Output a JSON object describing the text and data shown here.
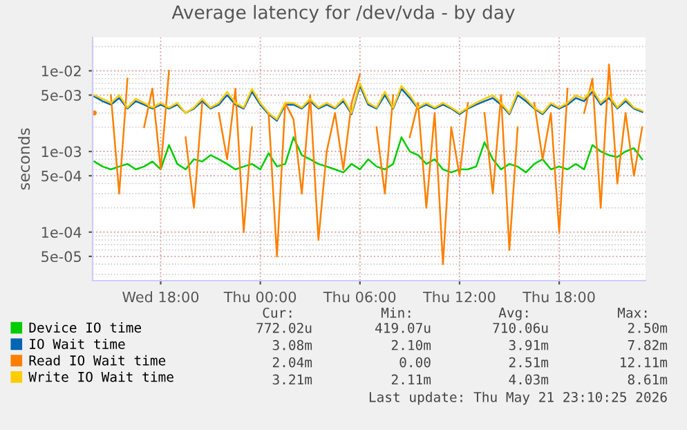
{
  "chart_data": {
    "type": "line",
    "title": "Average latency for /dev/vda - by day",
    "ylabel": "seconds",
    "x": [
      "2026-05-20T14:00",
      "2026-05-20T14:30",
      "2026-05-20T15:00",
      "2026-05-20T15:30",
      "2026-05-20T16:00",
      "2026-05-20T16:30",
      "2026-05-20T17:00",
      "2026-05-20T17:30",
      "2026-05-20T18:00",
      "2026-05-20T18:30",
      "2026-05-20T19:00",
      "2026-05-20T19:30",
      "2026-05-20T20:00",
      "2026-05-20T20:30",
      "2026-05-20T21:00",
      "2026-05-20T21:30",
      "2026-05-20T22:00",
      "2026-05-20T22:30",
      "2026-05-20T23:00",
      "2026-05-20T23:30",
      "2026-05-21T00:00",
      "2026-05-21T00:30",
      "2026-05-21T01:00",
      "2026-05-21T01:30",
      "2026-05-21T02:00",
      "2026-05-21T02:30",
      "2026-05-21T03:00",
      "2026-05-21T03:30",
      "2026-05-21T04:00",
      "2026-05-21T04:30",
      "2026-05-21T05:00",
      "2026-05-21T05:30",
      "2026-05-21T06:00",
      "2026-05-21T06:30",
      "2026-05-21T07:00",
      "2026-05-21T07:30",
      "2026-05-21T08:00",
      "2026-05-21T08:30",
      "2026-05-21T09:00",
      "2026-05-21T09:30",
      "2026-05-21T10:00",
      "2026-05-21T10:30",
      "2026-05-21T11:00",
      "2026-05-21T11:30",
      "2026-05-21T12:00",
      "2026-05-21T12:30",
      "2026-05-21T13:00",
      "2026-05-21T13:30",
      "2026-05-21T14:00",
      "2026-05-21T14:30",
      "2026-05-21T15:00",
      "2026-05-21T15:30",
      "2026-05-21T16:00",
      "2026-05-21T16:30",
      "2026-05-21T17:00",
      "2026-05-21T17:30",
      "2026-05-21T18:00",
      "2026-05-21T18:30",
      "2026-05-21T19:00",
      "2026-05-21T19:30",
      "2026-05-21T20:00",
      "2026-05-21T20:30",
      "2026-05-21T21:00",
      "2026-05-21T21:30",
      "2026-05-21T22:00",
      "2026-05-21T22:30",
      "2026-05-21T23:00"
    ],
    "series": [
      {
        "name": "Device IO time",
        "color": "#00cc00",
        "values": [
          0.00075,
          0.00065,
          0.0006,
          0.00065,
          0.0007,
          0.0006,
          0.00065,
          0.00075,
          0.0006,
          0.0012,
          0.0007,
          0.0006,
          0.0008,
          0.00075,
          0.0009,
          0.0008,
          0.0007,
          0.0006,
          0.00065,
          0.0007,
          0.0006,
          0.00095,
          0.00065,
          0.0007,
          0.0015,
          0.0009,
          0.0008,
          0.0007,
          0.00065,
          0.0006,
          0.00055,
          0.0007,
          0.0006,
          0.0008,
          0.00065,
          0.0006,
          0.0007,
          0.0015,
          0.001,
          0.0009,
          0.0007,
          0.0008,
          0.0006,
          0.00055,
          0.0006,
          0.0006,
          0.00065,
          0.0013,
          0.0008,
          0.0006,
          0.0007,
          0.00065,
          0.00055,
          0.0007,
          0.0008,
          0.0006,
          0.00065,
          0.0006,
          0.0007,
          0.0006,
          0.0012,
          0.001,
          0.0009,
          0.00085,
          0.001,
          0.0011,
          0.0008
        ]
      },
      {
        "name": "IO Wait time",
        "color": "#0066b3",
        "values": [
          0.0048,
          0.0042,
          0.0038,
          0.0046,
          0.0034,
          0.0042,
          0.0038,
          0.0034,
          0.0038,
          0.0034,
          0.0038,
          0.003,
          0.0034,
          0.0042,
          0.0034,
          0.0038,
          0.005,
          0.0038,
          0.0034,
          0.0055,
          0.0038,
          0.0029,
          0.0024,
          0.0038,
          0.0038,
          0.0034,
          0.0042,
          0.0034,
          0.0038,
          0.0034,
          0.0042,
          0.0029,
          0.0065,
          0.0038,
          0.0034,
          0.005,
          0.0034,
          0.006,
          0.0046,
          0.0034,
          0.0038,
          0.0034,
          0.0038,
          0.0034,
          0.0029,
          0.0034,
          0.0038,
          0.0042,
          0.0046,
          0.0038,
          0.0029,
          0.005,
          0.0042,
          0.0034,
          0.0029,
          0.0038,
          0.0034,
          0.0038,
          0.0046,
          0.0042,
          0.0055,
          0.0038,
          0.0046,
          0.0034,
          0.0042,
          0.0034,
          0.0031
        ]
      },
      {
        "name": "Read IO Wait time",
        "color": "#ff8000",
        "values": [
          0.003,
          null,
          0.005,
          0.0003,
          0.008,
          null,
          0.002,
          0.006,
          0.0006,
          0.01,
          null,
          0.0015,
          0.0002,
          0.004,
          null,
          0.003,
          0.0008,
          0.006,
          0.0001,
          0.002,
          null,
          0.003,
          5e-05,
          0.004,
          0.0025,
          0.0003,
          0.005,
          8e-05,
          0.001,
          0.003,
          0.0006,
          0.004,
          0.009,
          null,
          0.002,
          0.0003,
          0.005,
          null,
          0.0015,
          0.004,
          0.0002,
          0.003,
          4e-05,
          0.002,
          0.0005,
          0.004,
          null,
          0.003,
          0.0003,
          0.005,
          6e-05,
          0.002,
          null,
          0.004,
          0.0008,
          0.003,
          0.0001,
          0.006,
          null,
          0.003,
          0.008,
          0.0002,
          0.012,
          0.0004,
          0.003,
          0.0005,
          0.002
        ]
      },
      {
        "name": "Write IO Wait time",
        "color": "#ffcc00",
        "values": [
          0.005,
          0.0045,
          0.004,
          0.005,
          0.0035,
          0.0045,
          0.004,
          0.0035,
          0.004,
          0.0035,
          0.004,
          0.003,
          0.0035,
          0.0045,
          0.0035,
          0.004,
          0.0055,
          0.004,
          0.0035,
          0.006,
          0.004,
          0.003,
          0.0025,
          0.004,
          0.004,
          0.0035,
          0.0045,
          0.0035,
          0.004,
          0.0035,
          0.0045,
          0.003,
          0.007,
          0.004,
          0.0035,
          0.0055,
          0.0035,
          0.0065,
          0.005,
          0.0035,
          0.004,
          0.0035,
          0.004,
          0.0035,
          0.003,
          0.0035,
          0.004,
          0.0045,
          0.005,
          0.004,
          0.003,
          0.0055,
          0.0045,
          0.0035,
          0.003,
          0.004,
          0.0035,
          0.004,
          0.005,
          0.0045,
          0.006,
          0.004,
          0.005,
          0.0035,
          0.0045,
          0.0035,
          0.0032
        ]
      }
    ],
    "log": "y",
    "xlim": [
      "2026-05-20T13:54",
      "2026-05-21T23:12"
    ],
    "ylim": [
      2.5e-05,
      0.026
    ],
    "xticks": [
      {
        "value": "2026-05-20T18:00",
        "label": "Wed 18:00"
      },
      {
        "value": "2026-05-21T00:00",
        "label": "Thu 00:00"
      },
      {
        "value": "2026-05-21T06:00",
        "label": "Thu 06:00"
      },
      {
        "value": "2026-05-21T12:00",
        "label": "Thu 12:00"
      },
      {
        "value": "2026-05-21T18:00",
        "label": "Thu 18:00"
      }
    ],
    "yticks": [
      {
        "value": 5e-05,
        "label": "5e-05"
      },
      {
        "value": 0.0001,
        "label": "1e-04"
      },
      {
        "value": 0.0005,
        "label": "5e-04"
      },
      {
        "value": 0.001,
        "label": "1e-03"
      },
      {
        "value": 0.005,
        "label": "5e-03"
      },
      {
        "value": 0.01,
        "label": "1e-02"
      }
    ],
    "grid": true,
    "legend": "bottom",
    "marker": "none",
    "line_style": "solid",
    "annotations": [
      "Cur:",
      "Min:",
      "Avg:",
      "Max:",
      "772.02u",
      "419.07u",
      "710.06u",
      "2.50m",
      "3.08m",
      "2.10m",
      "3.91m",
      "7.82m",
      "2.04m",
      "0.00",
      "2.51m",
      "12.11m",
      "3.21m",
      "2.11m",
      "4.03m",
      "8.61m",
      "Last update: Thu May 21 23:10:25 2026"
    ]
  }
}
